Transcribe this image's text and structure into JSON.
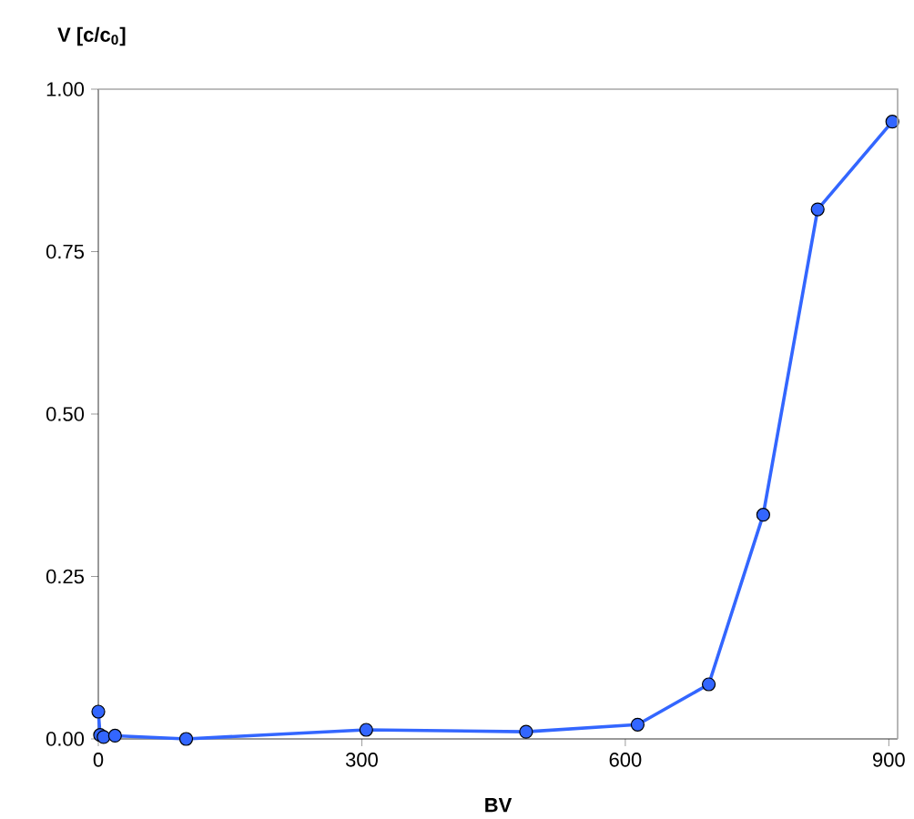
{
  "chart_data": {
    "type": "line",
    "ylabel": "V [c/c$_{0}$]",
    "xlabel": "BV",
    "series": [
      {
        "color": "#3366ff",
        "x": [
          0,
          2,
          6,
          19,
          100,
          305,
          487,
          614,
          695,
          757,
          819,
          904
        ],
        "values": [
          0.042,
          0.006,
          0.003,
          0.005,
          0.0,
          0.014,
          0.011,
          0.022,
          0.084,
          0.345,
          0.815,
          0.95
        ]
      }
    ],
    "xlim": [
      0,
      910
    ],
    "ylim": [
      0,
      1
    ],
    "xticks": [
      0,
      300,
      600,
      900
    ],
    "yticks": [
      {
        "value": 0,
        "label": "0.00"
      },
      {
        "value": 0.25,
        "label": "0.25"
      },
      {
        "value": 0.5,
        "label": "0.50"
      },
      {
        "value": 0.75,
        "label": "0.75"
      },
      {
        "value": 1,
        "label": "1.00"
      }
    ],
    "marker": "circle",
    "line_style": "solid",
    "grid": false
  }
}
